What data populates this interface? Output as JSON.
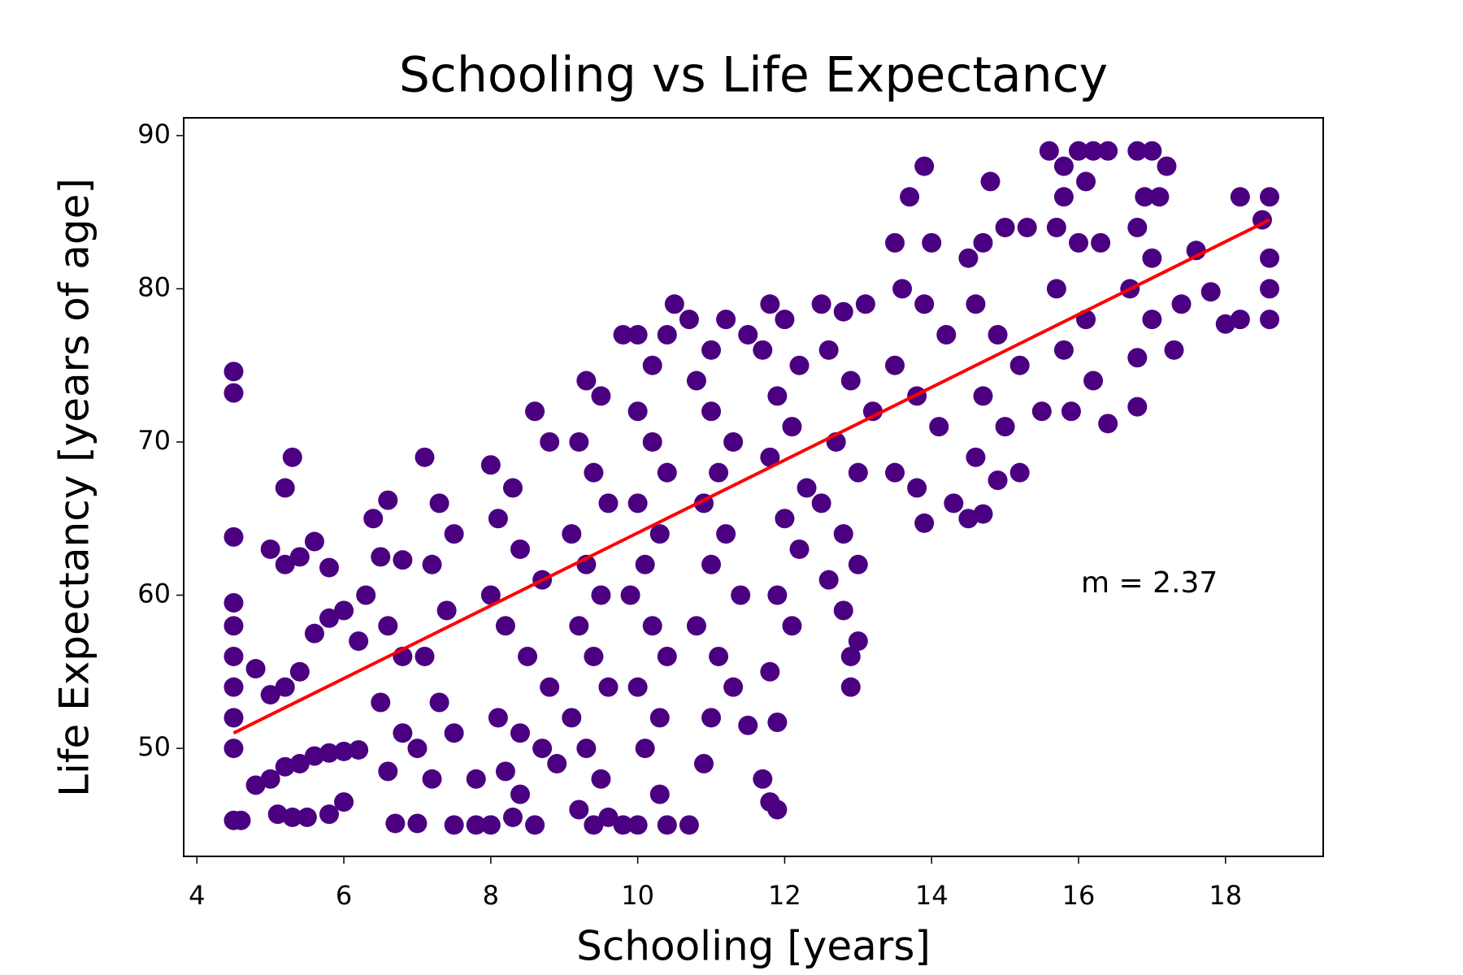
{
  "chart_data": {
    "type": "scatter",
    "title": "Schooling vs Life Expectancy",
    "xlabel": "Schooling [years]",
    "ylabel": "Life Expectancy [years of age]",
    "xlim": [
      3.82,
      19.33
    ],
    "ylim": [
      42.95,
      91.16
    ],
    "xticks": [
      4,
      6,
      8,
      10,
      12,
      14,
      16,
      18
    ],
    "yticks": [
      50,
      60,
      70,
      80,
      90
    ],
    "color": "#4b0082",
    "x": [
      4.5,
      4.6,
      4.5,
      4.5,
      4.5,
      4.5,
      4.5,
      4.5,
      4.5,
      4.5,
      4.5,
      4.8,
      5,
      5.2,
      5.4,
      5.6,
      5.8,
      6,
      6.2,
      5.1,
      5.3,
      5.5,
      5.8,
      6,
      4.8,
      5,
      5.2,
      5.4,
      5.6,
      5.8,
      6,
      6.2,
      5,
      5.2,
      5.4,
      5.6,
      5.8,
      5.3,
      5.2,
      6.4,
      6.6,
      6.5,
      6.8,
      6.3,
      6.6,
      6.8,
      6.5,
      6.8,
      6.6,
      6.7,
      7,
      7.1,
      7.3,
      7.5,
      7.2,
      7.4,
      7.1,
      7.3,
      7.5,
      7.2,
      7,
      7.5,
      7.8,
      8,
      8.3,
      8.6,
      8.4,
      7.8,
      8.2,
      8,
      8.3,
      8.6,
      8.8,
      8.1,
      8.4,
      8.7,
      8,
      8.2,
      8.5,
      8.8,
      8.1,
      8.4,
      8.7,
      8.9,
      9.3,
      9.5,
      9.2,
      9.4,
      9.6,
      9.1,
      9.3,
      9.5,
      9.2,
      9.4,
      9.6,
      9.1,
      9.3,
      9.5,
      9.2,
      9.4,
      9.6,
      9.8,
      9.8,
      10,
      10.2,
      10.5,
      10.4,
      10,
      10.2,
      10.4,
      10,
      10.3,
      10.1,
      9.9,
      10.2,
      10.4,
      10,
      10.3,
      10.1,
      10.3,
      10,
      10.4,
      10.7,
      10.7,
      11,
      11.2,
      11.5,
      10.8,
      11,
      11.3,
      11.1,
      10.9,
      11.2,
      11,
      11.4,
      10.8,
      11.1,
      11.3,
      11,
      10.9,
      11.5,
      11.8,
      12,
      11.7,
      12.2,
      11.9,
      12.1,
      11.8,
      12.3,
      12,
      12.2,
      11.9,
      12.1,
      11.8,
      11.9,
      11.7,
      11.8,
      11.9,
      12.5,
      12.8,
      13.1,
      12.6,
      12.9,
      13.2,
      12.7,
      13,
      12.5,
      12.8,
      13,
      12.6,
      12.8,
      12.9,
      12.9,
      13,
      13.5,
      13.7,
      13.9,
      14,
      13.6,
      13.9,
      14.2,
      13.5,
      13.8,
      14.1,
      13.5,
      13.8,
      13.9,
      14.3,
      14.5,
      14.8,
      14.5,
      14.7,
      15,
      15.3,
      14.6,
      14.9,
      15.2,
      14.7,
      15,
      14.6,
      14.9,
      15.2,
      14.7,
      15.6,
      15.8,
      16,
      16.2,
      16.4,
      15.8,
      16.1,
      15.7,
      16,
      16.3,
      15.7,
      16.1,
      15.8,
      16.2,
      15.5,
      16.4,
      15.9,
      16.8,
      17,
      17.2,
      16.9,
      17.1,
      16.8,
      17,
      16.7,
      17,
      16.8,
      17.3,
      17.4,
      17.6,
      17.8,
      18,
      18.2,
      18.2,
      18.6,
      18.5,
      18.6,
      18.6,
      18.6,
      16.8
    ],
    "values": [
      45.3,
      45.3,
      50,
      52,
      54,
      56,
      58,
      59.5,
      63.8,
      73.2,
      74.6,
      47.6,
      48,
      48.8,
      49,
      49.5,
      49.7,
      49.8,
      49.9,
      45.7,
      45.5,
      45.5,
      45.7,
      46.5,
      55.2,
      53.5,
      54,
      55,
      57.5,
      58.5,
      59,
      57,
      63,
      62,
      62.5,
      63.5,
      61.8,
      69,
      67,
      65,
      66.2,
      62.5,
      62.3,
      60,
      58,
      56,
      53,
      51,
      48.5,
      45.1,
      45.1,
      69,
      66,
      64,
      62,
      59,
      56,
      53,
      51,
      48,
      50,
      45,
      45,
      45,
      45.5,
      45,
      47,
      48,
      48.5,
      68.5,
      67,
      72,
      70,
      65,
      63,
      61,
      60,
      58,
      56,
      54,
      52,
      51,
      50,
      49,
      74,
      73,
      70,
      68,
      66,
      64,
      62,
      60,
      58,
      56,
      54,
      52,
      50,
      48,
      46,
      45,
      45.5,
      45,
      77,
      77,
      75,
      79,
      77,
      72,
      70,
      68,
      66,
      64,
      62,
      60,
      58,
      56,
      54,
      52,
      50,
      47,
      45,
      45,
      45,
      78,
      76,
      78,
      77,
      74,
      72,
      70,
      68,
      66,
      64,
      62,
      60,
      58,
      56,
      54,
      52,
      49,
      51.5,
      79,
      78,
      76,
      75,
      73,
      71,
      69,
      67,
      65,
      63,
      60,
      58,
      55,
      51.7,
      48,
      46.5,
      46,
      79,
      78.5,
      79,
      76,
      74,
      72,
      70,
      68,
      66,
      64,
      62,
      61,
      59,
      56,
      54,
      57,
      83,
      86,
      88,
      83,
      80,
      79,
      77,
      75,
      73,
      71,
      68,
      67,
      64.7,
      66,
      65,
      87,
      82,
      83,
      84,
      84,
      79,
      77,
      75,
      73,
      71,
      69,
      67.5,
      68,
      65.3,
      89,
      88,
      89,
      89,
      89,
      86,
      87,
      84,
      83,
      83,
      80,
      78,
      76,
      74,
      72,
      71.2,
      72,
      89,
      89,
      88,
      86,
      86,
      84,
      82,
      80,
      78,
      75.5,
      76,
      79,
      82.5,
      79.8,
      77.7,
      78,
      86,
      86,
      84.5,
      82,
      80,
      78,
      72.3
    ],
    "fit": {
      "x": [
        4.5,
        18.6
      ],
      "values": [
        51,
        84.5
      ],
      "color": "#ff0000"
    },
    "annotation": "m = 2.37"
  }
}
